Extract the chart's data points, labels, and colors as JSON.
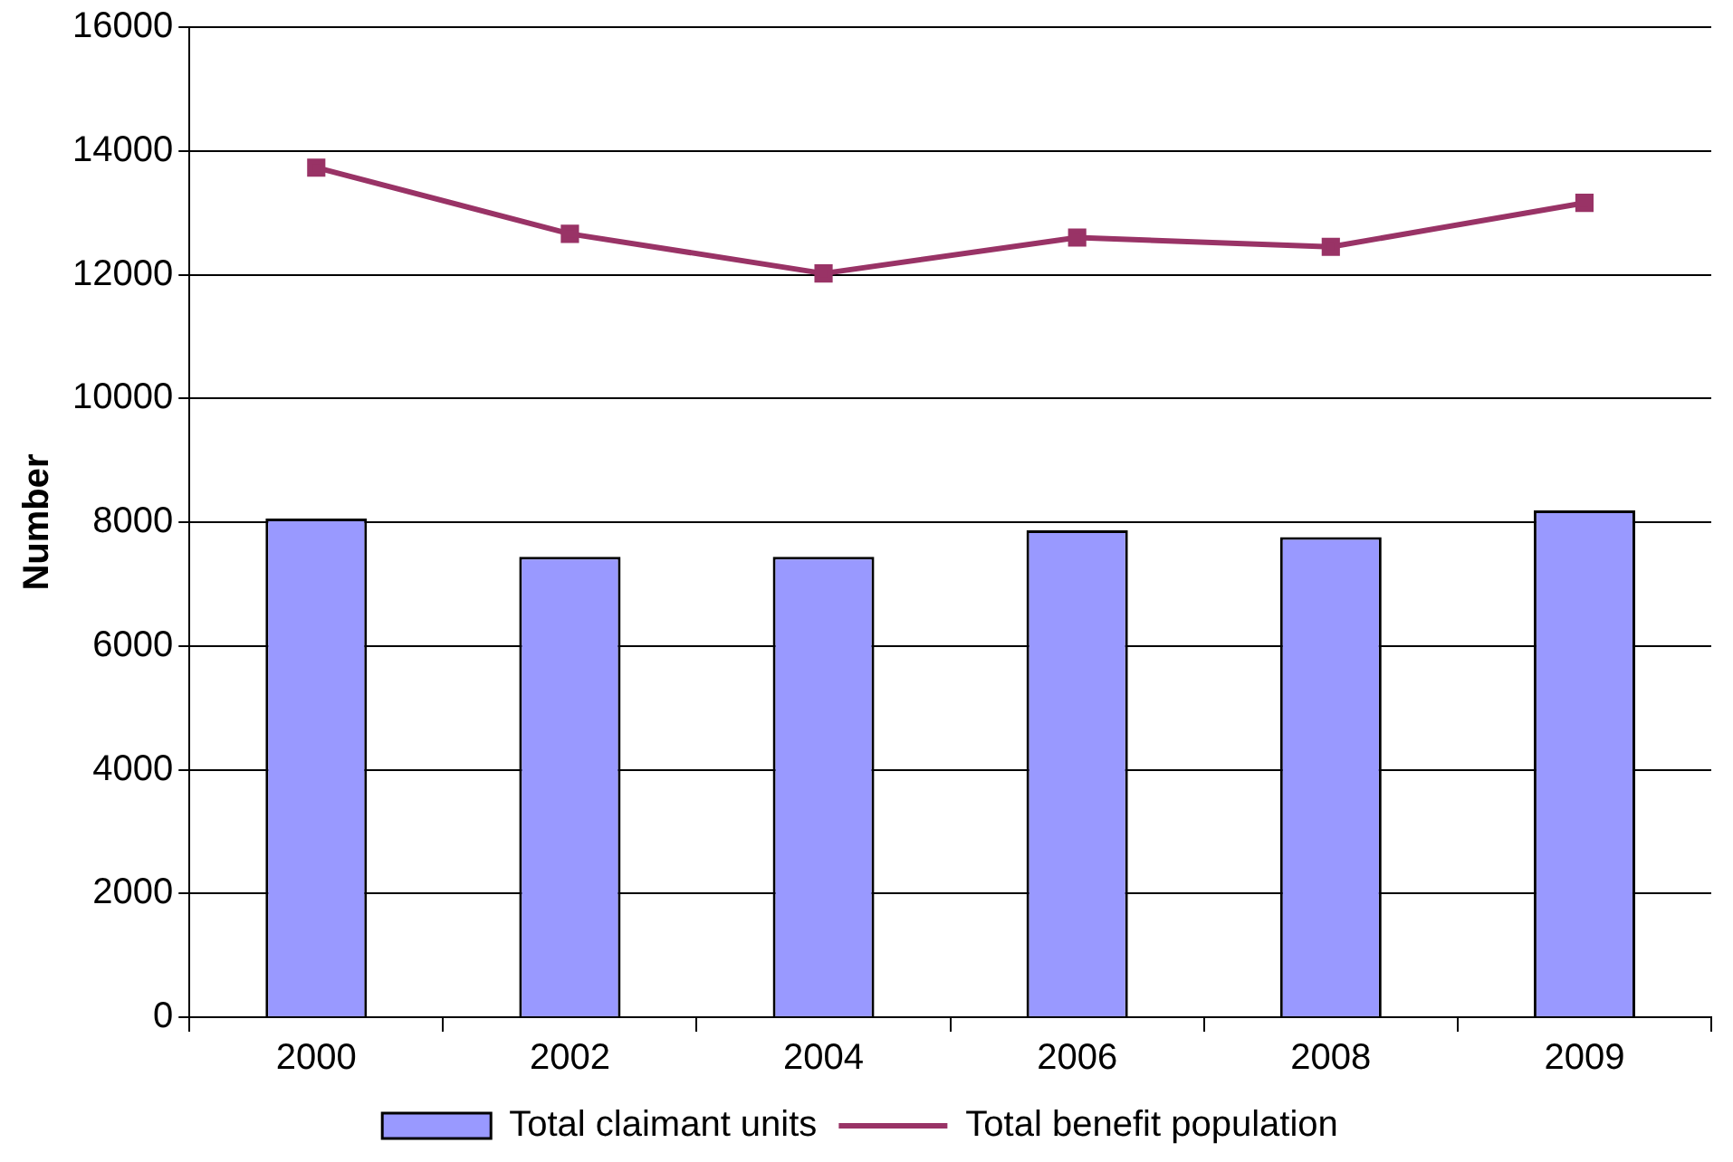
{
  "chart_data": {
    "type": "bar",
    "ylabel": "Number",
    "categories": [
      "2000",
      "2002",
      "2004",
      "2006",
      "2008",
      "2009"
    ],
    "series": [
      {
        "name": "Total claimant units",
        "color": "#9999ff",
        "values": [
          8060,
          7440,
          7440,
          7870,
          7760,
          8190
        ]
      },
      {
        "name": "Total benefit population",
        "type": "line",
        "color": "#993366",
        "values": [
          13730,
          12660,
          12020,
          12600,
          12450,
          13160
        ]
      }
    ],
    "ylim": [
      0,
      16000
    ],
    "yticks": [
      0,
      2000,
      4000,
      6000,
      8000,
      10000,
      12000,
      14000,
      16000
    ],
    "grid": "y",
    "legend": "bottom",
    "marker": "square"
  }
}
